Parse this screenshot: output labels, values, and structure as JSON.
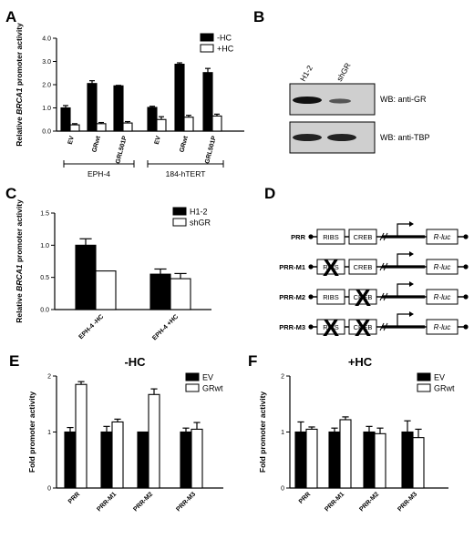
{
  "panel_labels": {
    "A": "A",
    "B": "B",
    "C": "C",
    "D": "D",
    "E": "E",
    "F": "F"
  },
  "chart_data": [
    {
      "id": "A",
      "type": "bar",
      "ylabel_parts": [
        "Relative ",
        "BRCA1",
        " promoter activity"
      ],
      "yticks": [
        "0.0",
        "1.0",
        "2.0",
        "3.0",
        "4.0"
      ],
      "ylim": [
        0,
        4
      ],
      "categories": [
        "EV",
        "GRwt",
        "GRL501P",
        "EV",
        "GRwt",
        "GRL501P"
      ],
      "groups": [
        "EPH-4",
        "184-hTERT"
      ],
      "legend_position": "top-right",
      "series": [
        {
          "name": "-HC",
          "color": "#000000",
          "values": [
            1.0,
            2.05,
            1.95,
            1.02,
            2.88,
            2.52
          ],
          "errors": [
            0.1,
            0.12,
            0.02,
            0.05,
            0.06,
            0.18
          ]
        },
        {
          "name": "+HC",
          "color": "#ffffff",
          "values": [
            0.27,
            0.32,
            0.35,
            0.5,
            0.6,
            0.65
          ],
          "errors": [
            0.05,
            0.05,
            0.06,
            0.12,
            0.08,
            0.08
          ]
        }
      ]
    },
    {
      "id": "C",
      "type": "bar",
      "ylabel_parts": [
        "Relative ",
        "BRCA1",
        " promoter activity"
      ],
      "yticks": [
        "0.0",
        "0.5",
        "1.0",
        "1.5"
      ],
      "ylim": [
        0,
        1.5
      ],
      "categories": [
        "EPH-4 -HC",
        "EPH-4 +HC"
      ],
      "legend_position": "top-right",
      "series": [
        {
          "name": "H1-2",
          "color": "#000000",
          "values": [
            1.0,
            0.55
          ],
          "errors": [
            0.1,
            0.08
          ]
        },
        {
          "name": "shGR",
          "color": "#ffffff",
          "values": [
            0.6,
            0.48
          ],
          "errors": [
            0.0,
            0.08
          ]
        }
      ]
    },
    {
      "id": "E",
      "type": "bar",
      "title": "-HC",
      "ylabel": "Fold promoter activity",
      "yticks": [
        "0",
        "1",
        "2"
      ],
      "ylim": [
        0,
        2
      ],
      "categories": [
        "PRR",
        "PRR-M1",
        "PRR-M2",
        "PRR-M3"
      ],
      "legend_position": "top-right",
      "series": [
        {
          "name": "EV",
          "color": "#000000",
          "values": [
            1.0,
            1.0,
            1.0,
            1.0
          ],
          "errors": [
            0.08,
            0.1,
            0.0,
            0.07
          ]
        },
        {
          "name": "GRwt",
          "color": "#ffffff",
          "values": [
            1.85,
            1.18,
            1.67,
            1.05
          ],
          "errors": [
            0.05,
            0.05,
            0.1,
            0.12
          ]
        }
      ]
    },
    {
      "id": "F",
      "type": "bar",
      "title": "+HC",
      "ylabel": "Fold promoter activity",
      "yticks": [
        "0",
        "1",
        "2"
      ],
      "ylim": [
        0,
        2
      ],
      "categories": [
        "PRR",
        "PRR-M1",
        "PRR-M2",
        "PRR-M3"
      ],
      "legend_position": "top-right",
      "series": [
        {
          "name": "EV",
          "color": "#000000",
          "values": [
            1.0,
            1.0,
            1.0,
            1.0
          ],
          "errors": [
            0.18,
            0.07,
            0.1,
            0.2
          ]
        },
        {
          "name": "GRwt",
          "color": "#ffffff",
          "values": [
            1.05,
            1.22,
            0.97,
            0.9
          ],
          "errors": [
            0.04,
            0.05,
            0.1,
            0.15
          ]
        }
      ]
    }
  ],
  "western_blot": {
    "lanes": [
      "H1-2",
      "shGR"
    ],
    "rows": [
      "WB: anti-GR",
      "WB: anti-TBP"
    ]
  },
  "diagram": {
    "constructs": [
      {
        "name": "PRR",
        "ribs": "RIBS",
        "creb": "CREB",
        "reporter": "R-luc",
        "mut_ribs": false,
        "mut_creb": false
      },
      {
        "name": "PRR-M1",
        "ribs": "RIBS",
        "creb": "CREB",
        "reporter": "R-luc",
        "mut_ribs": true,
        "mut_creb": false
      },
      {
        "name": "PRR-M2",
        "ribs": "RIBS",
        "creb": "CREB",
        "reporter": "R-luc",
        "mut_ribs": false,
        "mut_creb": true
      },
      {
        "name": "PRR-M3",
        "ribs": "RIBS",
        "creb": "CREB",
        "reporter": "R-luc",
        "mut_ribs": true,
        "mut_creb": true
      }
    ],
    "mutation_mark": "X"
  }
}
